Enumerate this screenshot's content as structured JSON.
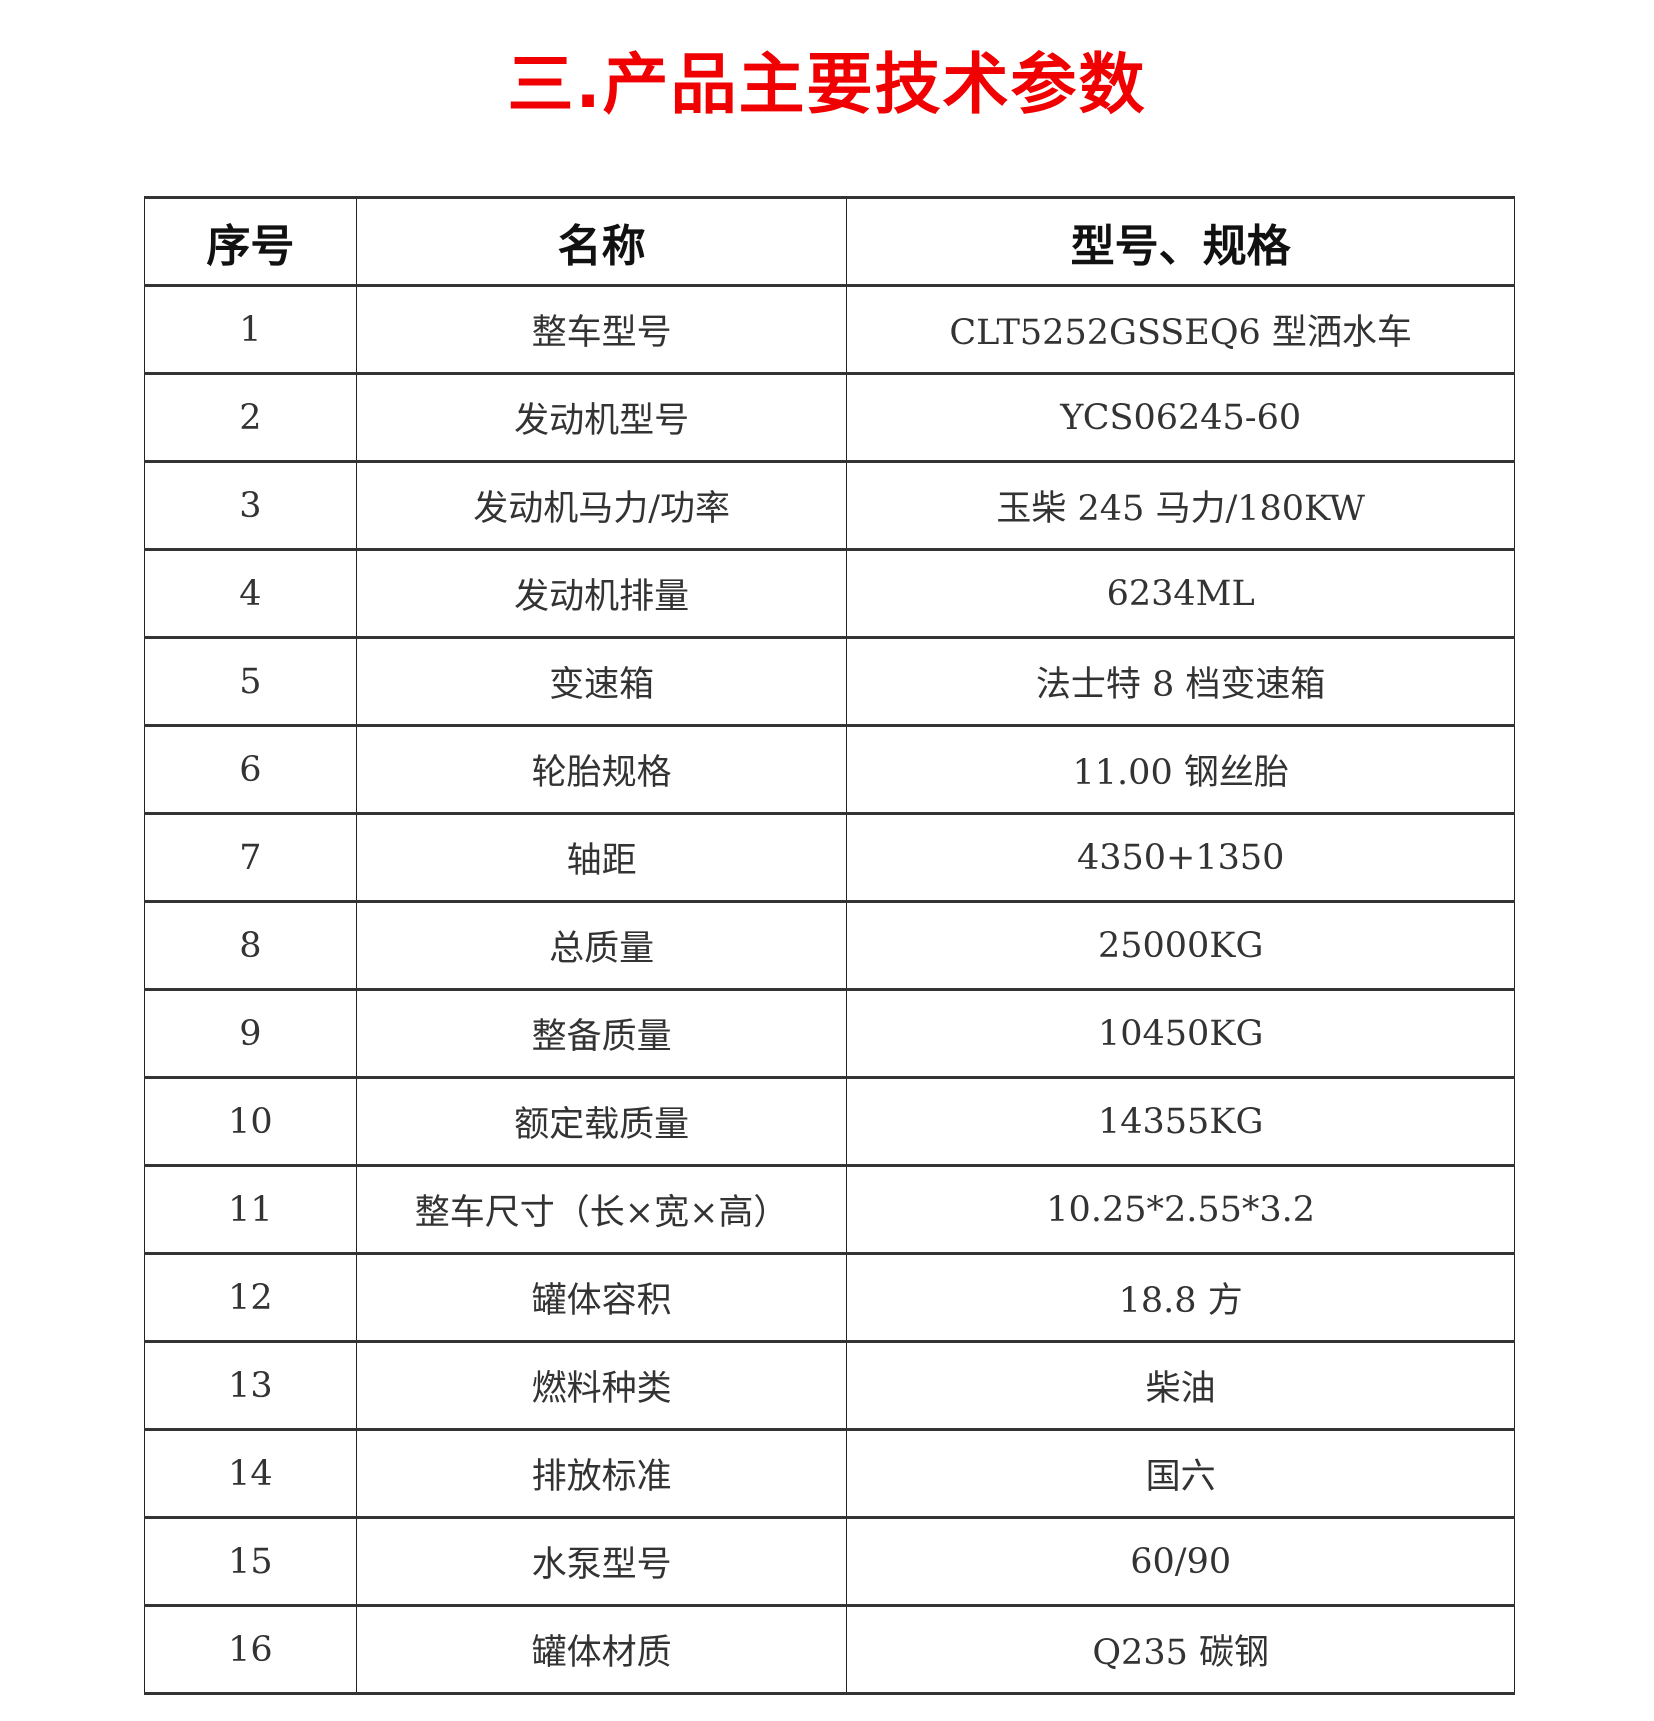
{
  "title": "三.产品主要技术参数",
  "table": {
    "headers": [
      "序号",
      "名称",
      "型号、规格"
    ],
    "rows": [
      [
        "1",
        "整车型号",
        "CLT5252GSSEQ6 型洒水车"
      ],
      [
        "2",
        "发动机型号",
        "YCS06245-60"
      ],
      [
        "3",
        "发动机马力/功率",
        "玉柴 245 马力/180KW"
      ],
      [
        "4",
        "发动机排量",
        "6234ML"
      ],
      [
        "5",
        "变速箱",
        "法士特 8 档变速箱"
      ],
      [
        "6",
        "轮胎规格",
        "11.00 钢丝胎"
      ],
      [
        "7",
        "轴距",
        "4350+1350"
      ],
      [
        "8",
        "总质量",
        "25000KG"
      ],
      [
        "9",
        "整备质量",
        "10450KG"
      ],
      [
        "10",
        "额定载质量",
        "14355KG"
      ],
      [
        "11",
        "整车尺寸（长×宽×高）",
        "10.25*2.55*3.2"
      ],
      [
        "12",
        "罐体容积",
        "18.8 方"
      ],
      [
        "13",
        "燃料种类",
        "柴油"
      ],
      [
        "14",
        "排放标准",
        "国六"
      ],
      [
        "15",
        "水泵型号",
        "60/90"
      ],
      [
        "16",
        "罐体材质",
        "Q235 碳钢"
      ]
    ]
  },
  "colors": {
    "title": "#f00000",
    "border": "#222222",
    "text": "#333333"
  }
}
